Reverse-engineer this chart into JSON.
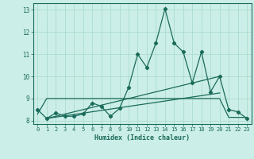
{
  "xlabel": "Humidex (Indice chaleur)",
  "background_color": "#cceee8",
  "line_color": "#1a6b5a",
  "grid_color": "#aaddcc",
  "x_values": [
    0,
    1,
    2,
    3,
    4,
    5,
    6,
    7,
    8,
    9,
    10,
    11,
    12,
    13,
    14,
    15,
    16,
    17,
    18,
    19,
    20,
    21,
    22,
    23
  ],
  "y_main": [
    8.5,
    8.1,
    8.35,
    8.2,
    8.2,
    8.3,
    8.8,
    8.65,
    8.2,
    8.55,
    9.5,
    11.0,
    10.4,
    11.5,
    13.05,
    11.5,
    11.1,
    9.7,
    11.1,
    9.3,
    10.0,
    8.5,
    8.4,
    8.1
  ],
  "y_flat": [
    8.3,
    9.0,
    9.0,
    9.0,
    9.0,
    9.0,
    9.0,
    9.0,
    9.0,
    9.0,
    9.0,
    9.0,
    9.0,
    9.0,
    9.0,
    9.0,
    9.0,
    9.0,
    9.0,
    9.0,
    9.0,
    8.15,
    8.15,
    8.15
  ],
  "y_diag1_start": 8.1,
  "y_diag1_end": 9.25,
  "y_diag1_x_start": 1,
  "y_diag1_x_end": 20,
  "y_diag2_start": 8.1,
  "y_diag2_end": 10.0,
  "y_diag2_x_start": 1,
  "y_diag2_x_end": 20,
  "ylim": [
    7.85,
    13.3
  ],
  "xlim": [
    -0.5,
    23.5
  ],
  "yticks": [
    8,
    9,
    10,
    11,
    12,
    13
  ],
  "xticks": [
    0,
    1,
    2,
    3,
    4,
    5,
    6,
    7,
    8,
    9,
    10,
    11,
    12,
    13,
    14,
    15,
    16,
    17,
    18,
    19,
    20,
    21,
    22,
    23
  ]
}
